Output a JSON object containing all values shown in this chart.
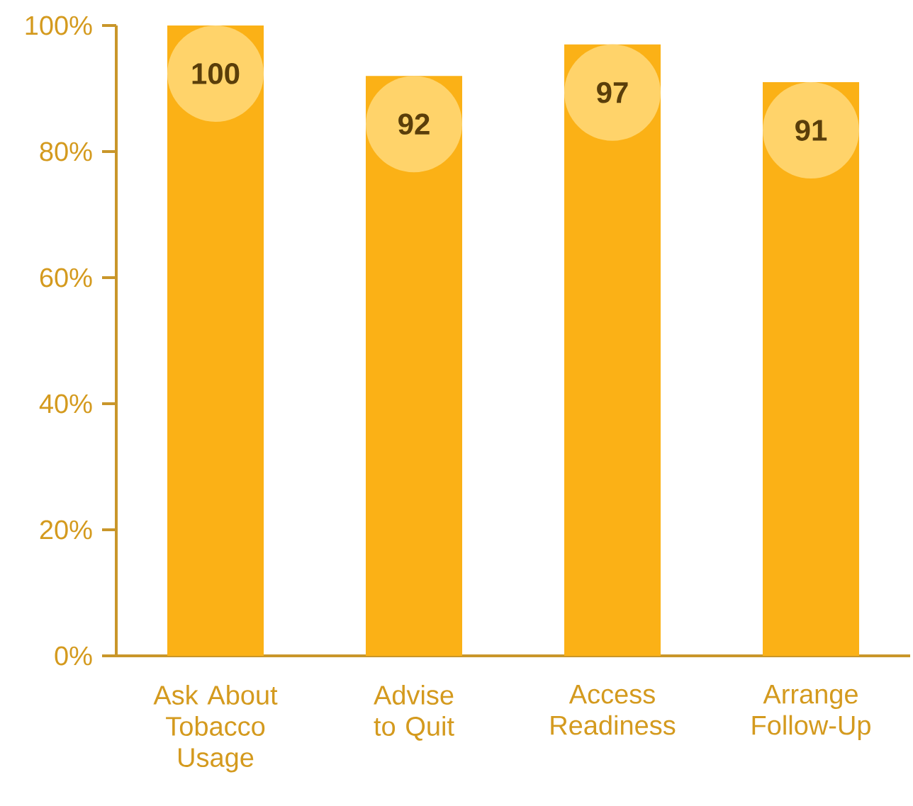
{
  "chart_data": {
    "type": "bar",
    "categories": [
      "Ask About Tobacco Usage",
      "Advise to Quit",
      "Access Readiness",
      "Arrange Follow-Up"
    ],
    "values": [
      100,
      92,
      97,
      91
    ],
    "color": "#fbb116",
    "data_labels": true,
    "ylim": [
      0,
      100
    ],
    "yticks": [
      {
        "value": 0,
        "label": "0%"
      },
      {
        "value": 20,
        "label": "20%"
      },
      {
        "value": 40,
        "label": "40%"
      },
      {
        "value": 60,
        "label": "60%"
      },
      {
        "value": 80,
        "label": "80%"
      },
      {
        "value": 100,
        "label": "100%"
      }
    ],
    "grid": false,
    "legend": false
  }
}
